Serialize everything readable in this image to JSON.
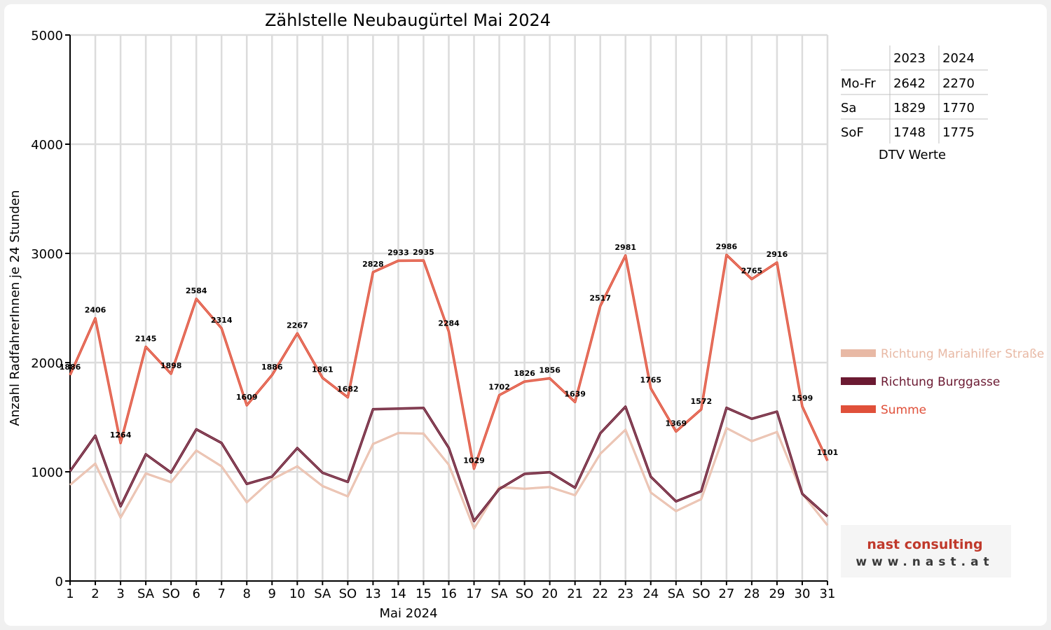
{
  "chart_data": {
    "type": "line",
    "title": "Zählstelle Neubaugürtel Mai 2024",
    "xlabel": "Mai 2024",
    "ylabel": "Anzahl RadfahrerInnen je 24 Stunden",
    "ylim": [
      0,
      5000
    ],
    "yticks": [
      "0",
      "1000",
      "2000",
      "3000",
      "4000",
      "5000"
    ],
    "grid": true,
    "legend_position": "right",
    "categories": [
      "1",
      "2",
      "3",
      "SA",
      "SO",
      "6",
      "7",
      "8",
      "9",
      "10",
      "SA",
      "SO",
      "13",
      "14",
      "15",
      "16",
      "17",
      "SA",
      "SO",
      "20",
      "21",
      "22",
      "23",
      "24",
      "SA",
      "SO",
      "27",
      "28",
      "29",
      "30",
      "31"
    ],
    "red_categories": [
      0,
      4,
      8,
      11,
      18,
      19,
      25,
      29
    ],
    "series": [
      {
        "name": "Richtung Mariahilfer Straße",
        "color": "#e8b9a5",
        "values": [
          880,
          1075,
          580,
          985,
          905,
          1195,
          1050,
          720,
          930,
          1050,
          870,
          775,
          1255,
          1355,
          1350,
          1065,
          480,
          860,
          845,
          860,
          785,
          1165,
          1385,
          810,
          640,
          750,
          1400,
          1280,
          1365,
          800,
          510
        ]
      },
      {
        "name": "Richtung Burggasse",
        "color": "#6b1a32",
        "values": [
          1006,
          1331,
          684,
          1160,
          993,
          1389,
          1264,
          889,
          956,
          1217,
          991,
          907,
          1573,
          1578,
          1585,
          1219,
          549,
          842,
          981,
          996,
          854,
          1352,
          1596,
          955,
          729,
          822,
          1586,
          1485,
          1551,
          799,
          591
        ]
      },
      {
        "name": "Summe",
        "color": "#e0503a",
        "values": [
          1886,
          2406,
          1264,
          2145,
          1898,
          2584,
          2314,
          1609,
          1886,
          2267,
          1861,
          1682,
          2828,
          2933,
          2935,
          2284,
          1029,
          1702,
          1826,
          1856,
          1639,
          2517,
          2981,
          1765,
          1369,
          1572,
          2986,
          2765,
          2916,
          1599,
          1101
        ]
      }
    ],
    "data_labels": [
      "1886",
      "2406",
      "1264",
      "2145",
      "1898",
      "2584",
      "2314",
      "1609",
      "1886",
      "2267",
      "1861",
      "1682",
      "2828",
      "2933",
      "2935",
      "2284",
      "1029",
      "1702",
      "1826",
      "1856",
      "1639",
      "2517",
      "2981",
      "1765",
      "1369",
      "1572",
      "2986",
      "2765",
      "2916",
      "1599",
      "1101"
    ]
  },
  "dtv_table": {
    "columns": [
      "",
      "2023",
      "2024"
    ],
    "rows": [
      {
        "label": "Mo-Fr",
        "v2023": "2642",
        "v2024": "2270"
      },
      {
        "label": "Sa",
        "v2023": "1829",
        "v2024": "1770"
      },
      {
        "label": "SoF",
        "v2023": "1748",
        "v2024": "1775"
      }
    ],
    "caption": "DTV Werte"
  },
  "logo": {
    "line1": "nast consulting",
    "line2": "www.nast.at"
  },
  "colors": {
    "red_tick": "#ff0000",
    "grid": "#dcdcdc",
    "axis": "#000000",
    "logo_red": "#c0392b",
    "logo_dark": "#3a3a3a"
  }
}
